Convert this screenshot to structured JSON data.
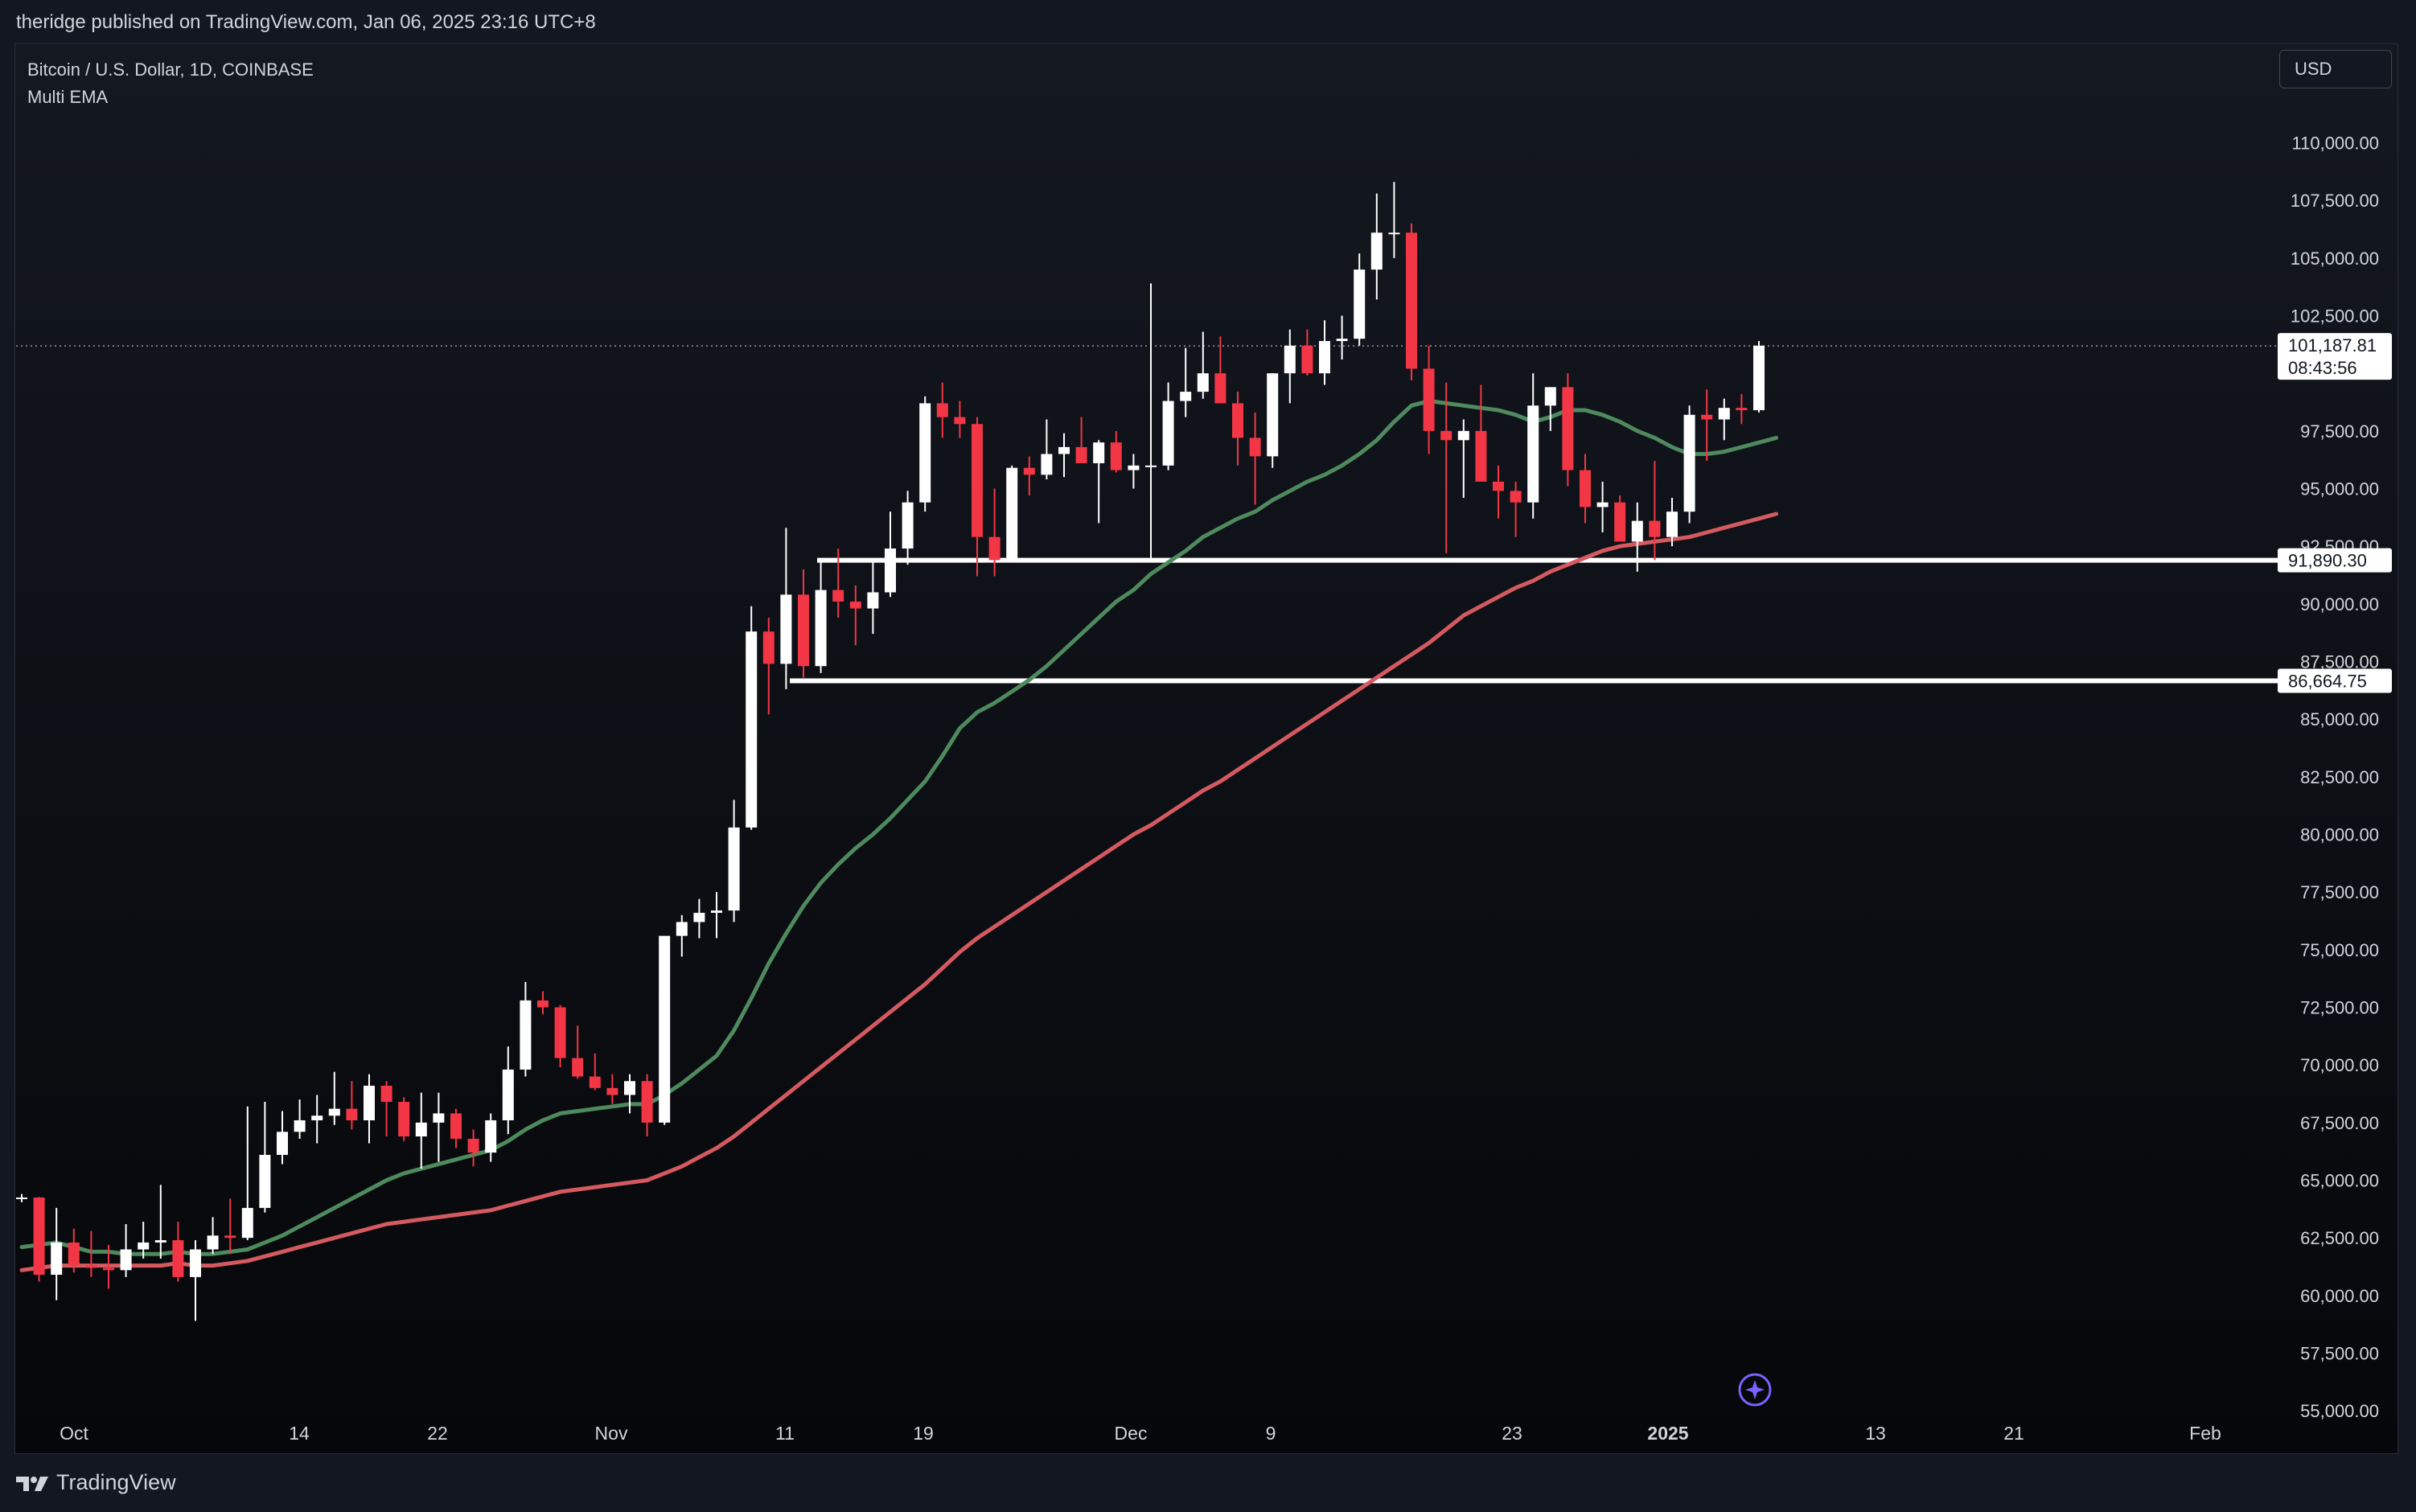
{
  "header": {
    "published_text": "theridge published on TradingView.com, Jan 06, 2025 23:16 UTC+8"
  },
  "legend": {
    "symbol_line": "Bitcoin / U.S. Dollar, 1D, COINBASE",
    "indicator_line": "Multi EMA"
  },
  "currency_button": "USD",
  "footer": {
    "brand": "TradingView"
  },
  "colors": {
    "up": "#ffffff",
    "down": "#f23645",
    "ema_fast": "#4e8a5e",
    "ema_slow": "#d45a5f",
    "level_line": "#ffffff"
  },
  "chart_data": {
    "type": "candlestick",
    "title": "Bitcoin / U.S. Dollar, 1D, COINBASE",
    "ylim": [
      53750,
      113750
    ],
    "y_ticks": [
      "110,000.00",
      "107,500.00",
      "105,000.00",
      "102,500.00",
      "97,500.00",
      "95,000.00",
      "92,500.00",
      "90,000.00",
      "87,500.00",
      "85,000.00",
      "82,500.00",
      "80,000.00",
      "77,500.00",
      "75,000.00",
      "72,500.00",
      "70,000.00",
      "67,500.00",
      "65,000.00",
      "62,500.00",
      "60,000.00",
      "57,500.00",
      "55,000.00"
    ],
    "x_ticks": [
      "Oct",
      "14",
      "22",
      "Nov",
      "11",
      "19",
      "Dec",
      "9",
      "23",
      "2025",
      "13",
      "21",
      "Feb"
    ],
    "current_price": {
      "value": "101,187.81",
      "countdown": "08:43:56",
      "y": 101187.81
    },
    "levels": [
      {
        "label": "91,890.30",
        "value": 91890.3
      },
      {
        "label": "86,664.75",
        "value": 86664.75
      }
    ],
    "candles": [
      [
        64200,
        64400,
        64050,
        64250
      ],
      [
        64250,
        64280,
        60600,
        60900
      ],
      [
        60900,
        63800,
        59800,
        62300
      ],
      [
        62300,
        62900,
        61000,
        61300
      ],
      [
        61300,
        62800,
        60800,
        61200
      ],
      [
        61200,
        62200,
        60300,
        61100
      ],
      [
        61100,
        63100,
        60800,
        62000
      ],
      [
        62000,
        63200,
        61600,
        62300
      ],
      [
        62300,
        64800,
        61600,
        62400
      ],
      [
        62400,
        63200,
        60600,
        60800
      ],
      [
        60800,
        62400,
        58900,
        62000
      ],
      [
        62000,
        63400,
        61800,
        62600
      ],
      [
        62600,
        64200,
        61800,
        62500
      ],
      [
        62500,
        68200,
        62400,
        63800
      ],
      [
        63800,
        68400,
        63600,
        66100
      ],
      [
        66100,
        68000,
        65700,
        67100
      ],
      [
        67100,
        68500,
        66800,
        67600
      ],
      [
        67600,
        68700,
        66600,
        67800
      ],
      [
        67800,
        69700,
        67400,
        68100
      ],
      [
        68100,
        69300,
        67200,
        67600
      ],
      [
        67600,
        69600,
        66600,
        69100
      ],
      [
        69100,
        69300,
        66900,
        68400
      ],
      [
        68400,
        68600,
        66700,
        66900
      ],
      [
        66900,
        68800,
        65500,
        67500
      ],
      [
        67500,
        68800,
        65800,
        67900
      ],
      [
        67900,
        68100,
        66400,
        66800
      ],
      [
        66800,
        67200,
        65600,
        66200
      ],
      [
        66200,
        67900,
        65800,
        67600
      ],
      [
        67600,
        70800,
        67000,
        69800
      ],
      [
        69800,
        73600,
        69500,
        72800
      ],
      [
        72800,
        73200,
        72200,
        72500
      ],
      [
        72500,
        72600,
        69900,
        70300
      ],
      [
        70300,
        71700,
        69400,
        69500
      ],
      [
        69500,
        70500,
        68900,
        69000
      ],
      [
        69000,
        69600,
        68300,
        68700
      ],
      [
        68700,
        69600,
        67900,
        69300
      ],
      [
        69300,
        69600,
        66900,
        67500
      ],
      [
        67500,
        75500,
        67400,
        75600
      ],
      [
        75600,
        76500,
        74700,
        76200
      ],
      [
        76200,
        77200,
        75500,
        76600
      ],
      [
        76600,
        77500,
        75500,
        76700
      ],
      [
        76700,
        81500,
        76200,
        80300
      ],
      [
        80300,
        89900,
        80200,
        88800
      ],
      [
        88800,
        89400,
        85200,
        87400
      ],
      [
        87400,
        93300,
        86300,
        90400
      ],
      [
        90400,
        91500,
        86800,
        87300
      ],
      [
        87300,
        91800,
        87000,
        90600
      ],
      [
        90600,
        92400,
        89400,
        90100
      ],
      [
        90100,
        90800,
        88200,
        89800
      ],
      [
        89800,
        91800,
        88700,
        90500
      ],
      [
        90500,
        94000,
        90300,
        92400
      ],
      [
        92400,
        94900,
        91700,
        94400
      ],
      [
        94400,
        99000,
        94000,
        98700
      ],
      [
        98700,
        99600,
        97200,
        98100
      ],
      [
        98100,
        98800,
        97200,
        97800
      ],
      [
        97800,
        98100,
        91200,
        92900
      ],
      [
        92900,
        95000,
        91200,
        91900
      ],
      [
        91900,
        96000,
        91800,
        95900
      ],
      [
        95900,
        96400,
        94700,
        95600
      ],
      [
        95600,
        98000,
        95400,
        96500
      ],
      [
        96500,
        97400,
        95500,
        96800
      ],
      [
        96800,
        98100,
        96100,
        96100
      ],
      [
        96100,
        97100,
        93500,
        97000
      ],
      [
        97000,
        97500,
        95700,
        95800
      ],
      [
        95800,
        96500,
        95000,
        96000
      ],
      [
        96000,
        103900,
        91900,
        96000
      ],
      [
        96000,
        99600,
        95800,
        98800
      ],
      [
        98800,
        101100,
        98100,
        99200
      ],
      [
        99200,
        101800,
        98900,
        100000
      ],
      [
        100000,
        101600,
        98900,
        98700
      ],
      [
        98700,
        99200,
        96000,
        97200
      ],
      [
        97200,
        98300,
        94300,
        96400
      ],
      [
        96400,
        100000,
        95900,
        100000
      ],
      [
        100000,
        101900,
        98700,
        101200
      ],
      [
        101200,
        101900,
        99900,
        100000
      ],
      [
        100000,
        102300,
        99500,
        101400
      ],
      [
        101400,
        102500,
        100600,
        101500
      ],
      [
        101500,
        105200,
        101200,
        104500
      ],
      [
        104500,
        107800,
        103200,
        106100
      ],
      [
        106100,
        108300,
        105000,
        106100
      ],
      [
        106100,
        106500,
        99700,
        100200
      ],
      [
        100200,
        101200,
        96500,
        97500
      ],
      [
        97500,
        99600,
        92200,
        97100
      ],
      [
        97100,
        98000,
        94600,
        97500
      ],
      [
        97500,
        99500,
        95400,
        95300
      ],
      [
        95300,
        96000,
        93700,
        94900
      ],
      [
        94900,
        95300,
        92900,
        94400
      ],
      [
        94400,
        100000,
        93700,
        98600
      ],
      [
        98600,
        99400,
        97500,
        99400
      ],
      [
        99400,
        100000,
        95100,
        95800
      ],
      [
        95800,
        96500,
        93500,
        94200
      ],
      [
        94200,
        95300,
        93100,
        94400
      ],
      [
        94400,
        94700,
        92800,
        92700
      ],
      [
        92700,
        94400,
        91400,
        93600
      ],
      [
        93600,
        96200,
        91900,
        92900
      ],
      [
        92900,
        94600,
        92500,
        94000
      ],
      [
        94000,
        98600,
        93500,
        98200
      ],
      [
        98200,
        99300,
        96200,
        98000
      ],
      [
        98000,
        98900,
        97100,
        98500
      ],
      [
        98500,
        99100,
        97800,
        98400
      ],
      [
        98400,
        101400,
        98300,
        101200
      ]
    ],
    "series": [
      {
        "name": "",
        "values": [
          62100,
          62200,
          62300,
          62100,
          61900,
          61900,
          61800,
          61800,
          61800,
          61900,
          61800,
          61800,
          61900,
          62000,
          62300,
          62600,
          63000,
          63400,
          63800,
          64200,
          64600,
          65000,
          65300,
          65500,
          65700,
          65900,
          66100,
          66300,
          66700,
          67200,
          67600,
          67900,
          68000,
          68100,
          68200,
          68300,
          68300,
          68700,
          69200,
          69800,
          70400,
          71500,
          72900,
          74400,
          75700,
          76900,
          77900,
          78700,
          79400,
          80000,
          80700,
          81500,
          82300,
          83400,
          84600,
          85300,
          85700,
          86200,
          86700,
          87300,
          88000,
          88700,
          89400,
          90100,
          90600,
          91300,
          91800,
          92300,
          92900,
          93300,
          93700,
          94000,
          94500,
          94900,
          95300,
          95600,
          96000,
          96500,
          97100,
          97900,
          98600,
          98800,
          98700,
          98600,
          98500,
          98400,
          98200,
          97900,
          98100,
          98400,
          98400,
          98200,
          97900,
          97500,
          97200,
          96800,
          96500,
          96500,
          96600,
          96800,
          97000,
          97200
        ]
      },
      {
        "name": "",
        "values": [
          61100,
          61200,
          61300,
          61300,
          61300,
          61300,
          61300,
          61300,
          61300,
          61400,
          61300,
          61300,
          61400,
          61500,
          61700,
          61900,
          62100,
          62300,
          62500,
          62700,
          62900,
          63100,
          63200,
          63300,
          63400,
          63500,
          63600,
          63700,
          63900,
          64100,
          64300,
          64500,
          64600,
          64700,
          64800,
          64900,
          65000,
          65300,
          65600,
          66000,
          66400,
          66900,
          67500,
          68100,
          68700,
          69300,
          69900,
          70500,
          71100,
          71700,
          72300,
          72900,
          73500,
          74200,
          74900,
          75500,
          76000,
          76500,
          77000,
          77500,
          78000,
          78500,
          79000,
          79500,
          80000,
          80400,
          80900,
          81400,
          81900,
          82300,
          82800,
          83300,
          83800,
          84300,
          84800,
          85300,
          85800,
          86300,
          86800,
          87300,
          87800,
          88300,
          88900,
          89500,
          89900,
          90300,
          90700,
          91000,
          91400,
          91700,
          92000,
          92300,
          92500,
          92600,
          92700,
          92800,
          92900,
          93100,
          93300,
          93500,
          93700,
          93900
        ]
      }
    ]
  }
}
